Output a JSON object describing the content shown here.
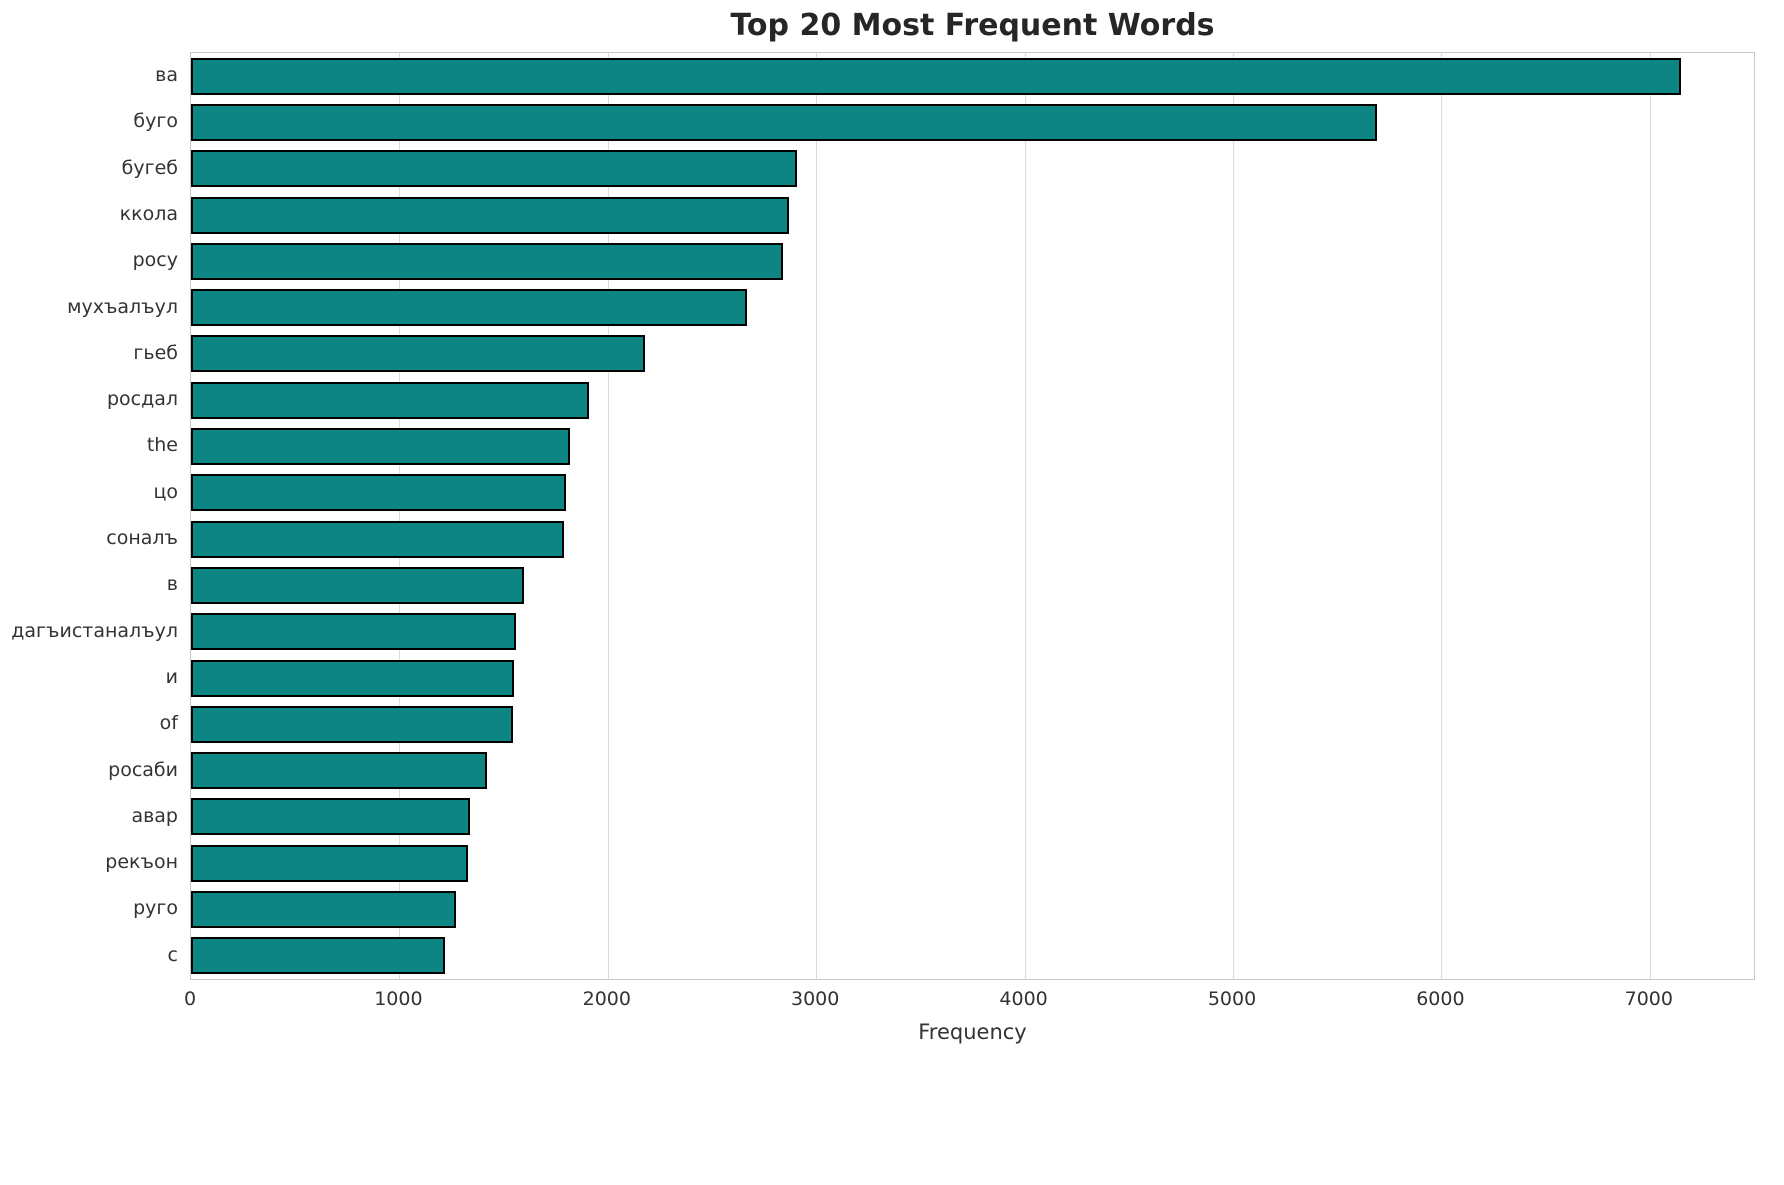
{
  "chart_data": {
    "type": "bar",
    "orientation": "horizontal",
    "title": "Top 20 Most Frequent Words",
    "xlabel": "Frequency",
    "ylabel": "",
    "categories": [
      "ва",
      "буго",
      "бугеб",
      "ккола",
      "росу",
      "мухъалъул",
      "гьеб",
      "росдал",
      "the",
      "цо",
      "соналъ",
      "в",
      "дагъистаналъул",
      "и",
      "of",
      "росаби",
      "авар",
      "рекъон",
      "руго",
      "с"
    ],
    "values": [
      7150,
      5690,
      2910,
      2870,
      2840,
      2670,
      2180,
      1910,
      1820,
      1800,
      1790,
      1600,
      1560,
      1550,
      1545,
      1420,
      1340,
      1330,
      1270,
      1220
    ],
    "xlim": [
      0,
      7500
    ],
    "xticks": [
      0,
      1000,
      2000,
      3000,
      4000,
      5000,
      6000,
      7000
    ],
    "bar_color": "#0d8683",
    "bar_edge_color": "#000000",
    "grid": true,
    "grid_color": "#dcdcdc",
    "legend": "none",
    "bar_fraction": 0.8
  }
}
